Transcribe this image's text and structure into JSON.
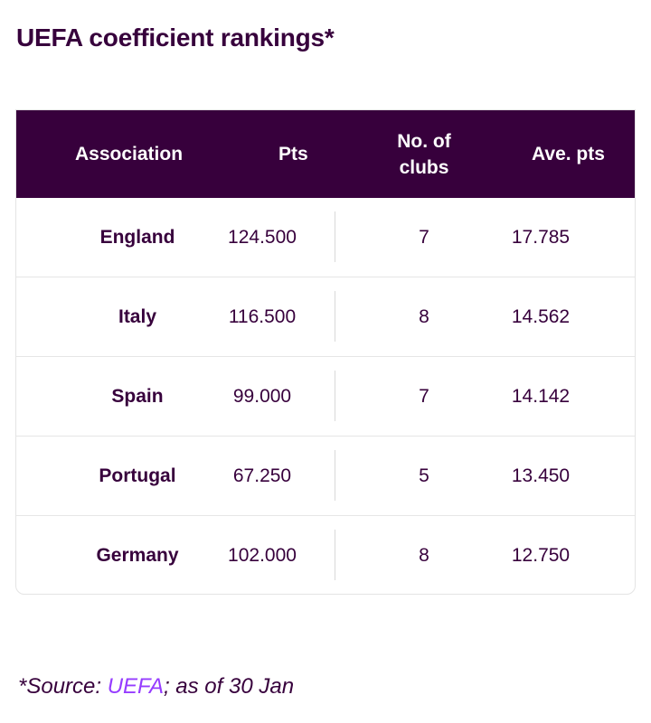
{
  "title": "UEFA coefficient rankings*",
  "table": {
    "headers": {
      "association": "Association",
      "pts": "Pts",
      "clubs": "No. of clubs",
      "ave": "Ave. pts"
    },
    "rows": [
      {
        "association": "England",
        "pts": "124.500",
        "clubs": "7",
        "ave": "17.785"
      },
      {
        "association": "Italy",
        "pts": "116.500",
        "clubs": "8",
        "ave": "14.562"
      },
      {
        "association": "Spain",
        "pts": "99.000",
        "clubs": "7",
        "ave": "14.142"
      },
      {
        "association": "Portugal",
        "pts": "67.250",
        "clubs": "5",
        "ave": "13.450"
      },
      {
        "association": "Germany",
        "pts": "102.000",
        "clubs": "8",
        "ave": "12.750"
      }
    ]
  },
  "footnote": {
    "prefix": "*Source: ",
    "link_text": "UEFA",
    "suffix": "; as of 30 Jan"
  },
  "colors": {
    "brand_purple": "#37003c",
    "link_purple": "#963cff"
  }
}
